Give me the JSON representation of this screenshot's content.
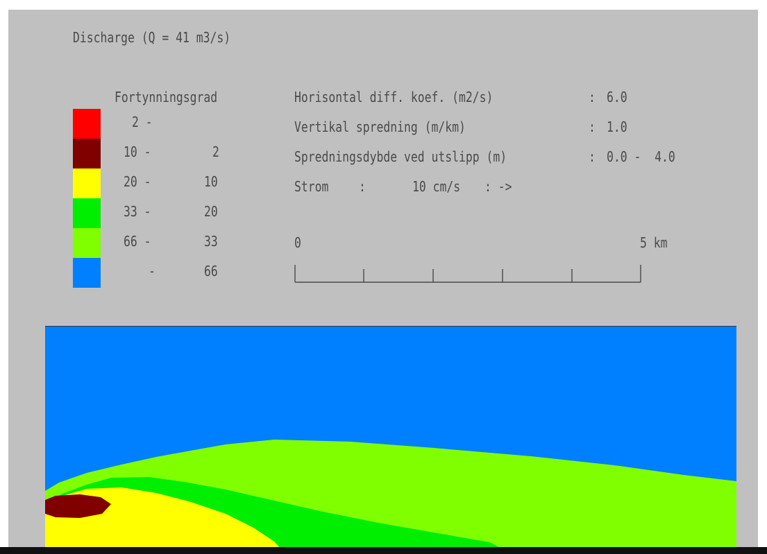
{
  "title": "Discharge (Q = 41 m3/s)",
  "legend": {
    "heading": "Fortynningsgrad",
    "items": [
      {
        "from": "2 -",
        "to": "",
        "color": "#ff0000"
      },
      {
        "from": "10 -",
        "to": "2",
        "color": "#800000"
      },
      {
        "from": "20 -",
        "to": "10",
        "color": "#ffff00"
      },
      {
        "from": "33 -",
        "to": "20",
        "color": "#00ee00"
      },
      {
        "from": "66 -",
        "to": "33",
        "color": "#80ff00"
      },
      {
        "from": "-",
        "to": "66",
        "color": "#0080ff"
      }
    ]
  },
  "params": {
    "horizontal_label": "Horisontal diff. koef. (m2/s)",
    "horizontal_sep": ":",
    "horizontal_value": "6.0",
    "vertical_label": "Vertikal spredning (m/km)",
    "vertical_sep": ":",
    "vertical_value": "1.0",
    "depth_label": "Spredningsdybde ved utslipp (m)",
    "depth_sep": ":",
    "depth_value": "0.0 -  4.0",
    "current_label": "Strom",
    "current_sep": ":",
    "current_value": "10 cm/s",
    "current_dir": ": ->"
  },
  "scale": {
    "start": "0",
    "end": "5 km",
    "segments": 5
  },
  "plot_colors": {
    "background": "#0080ff",
    "band_66_33": "#80ff00",
    "band_33_20": "#00ee00",
    "band_20_10": "#ffff00",
    "band_10_2": "#800000"
  }
}
